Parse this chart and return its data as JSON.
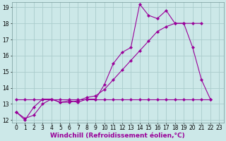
{
  "xlabel": "Windchill (Refroidissement éolien,°C)",
  "bg_color": "#cce8e8",
  "grid_color": "#aacccc",
  "line_color": "#990099",
  "x": [
    0,
    1,
    2,
    3,
    4,
    5,
    6,
    7,
    8,
    9,
    10,
    11,
    12,
    13,
    14,
    15,
    16,
    17,
    18,
    19,
    20,
    21,
    22,
    23
  ],
  "line1": [
    12.5,
    12.0,
    12.8,
    13.3,
    13.3,
    13.1,
    13.2,
    13.1,
    13.3,
    13.3,
    14.2,
    15.5,
    16.2,
    16.5,
    19.2,
    18.5,
    18.3,
    18.8,
    18.0,
    18.0,
    16.5,
    14.5,
    13.3,
    null
  ],
  "line2": [
    12.5,
    12.1,
    12.3,
    13.0,
    13.3,
    13.1,
    13.1,
    13.2,
    13.4,
    13.5,
    13.9,
    14.5,
    15.1,
    15.7,
    16.3,
    16.9,
    17.5,
    17.8,
    18.0,
    18.0,
    18.0,
    18.0,
    null,
    null
  ],
  "line3": [
    13.3,
    13.3,
    13.3,
    13.3,
    13.3,
    13.3,
    13.3,
    13.3,
    13.3,
    13.3,
    13.3,
    13.3,
    13.3,
    13.3,
    13.3,
    13.3,
    13.3,
    13.3,
    13.3,
    13.3,
    13.3,
    13.3,
    13.3,
    null
  ],
  "xlim_min": -0.5,
  "xlim_max": 23.5,
  "ylim_min": 11.85,
  "ylim_max": 19.3,
  "yticks": [
    12,
    13,
    14,
    15,
    16,
    17,
    18,
    19
  ],
  "xticks": [
    0,
    1,
    2,
    3,
    4,
    5,
    6,
    7,
    8,
    9,
    10,
    11,
    12,
    13,
    14,
    15,
    16,
    17,
    18,
    19,
    20,
    21,
    22,
    23
  ],
  "marker": "D",
  "markersize": 2.2,
  "linewidth": 0.8,
  "xlabel_fontsize": 6.5,
  "tick_fontsize": 5.5
}
